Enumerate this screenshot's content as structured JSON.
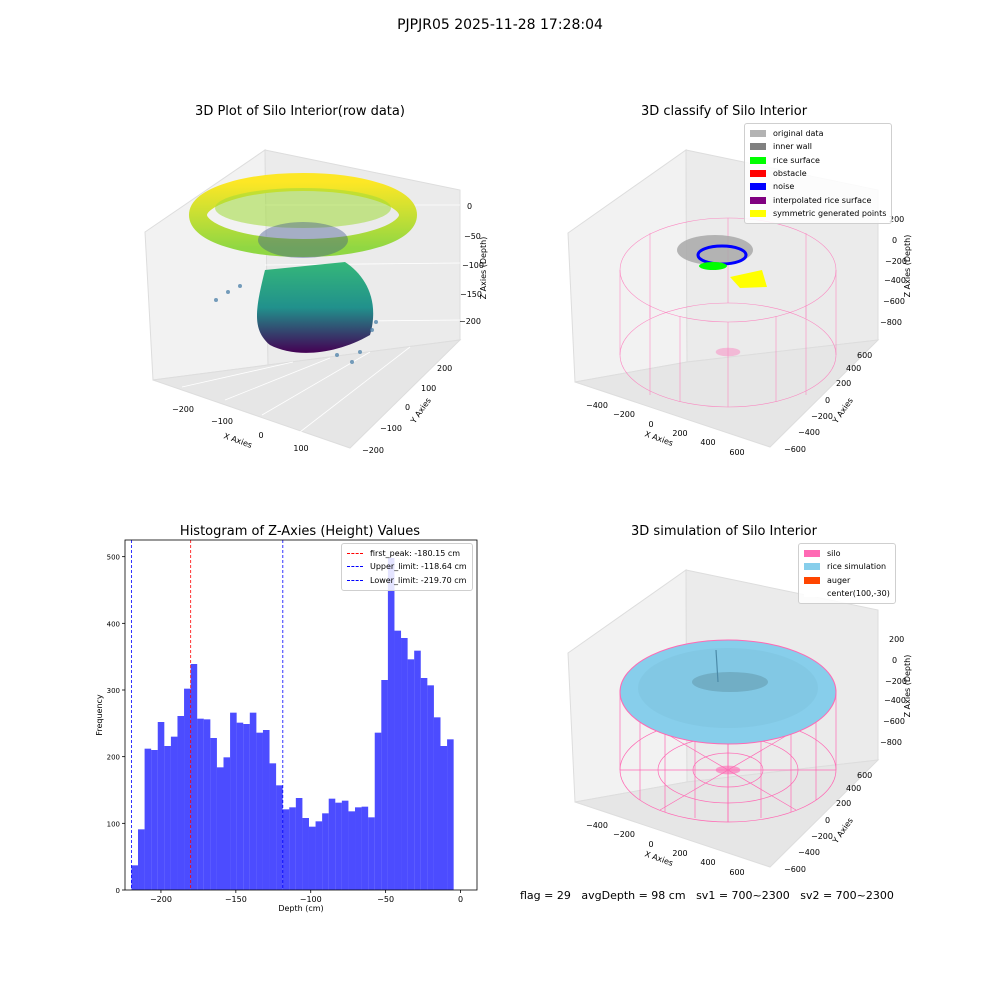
{
  "figure_title": "PJPJR05 2025-11-28 17:28:04",
  "footer": {
    "flag": "flag = 29",
    "avg": "avgDepth = 98 cm",
    "sv1": "sv1 = 700~2300",
    "sv2": "sv2 = 700~2300"
  },
  "panels": {
    "raw": {
      "title": "3D Plot of Silo Interior(row data)",
      "xlabel": "X Axies",
      "ylabel": "Y Axies",
      "zlabel": "Z Axies (Depth)",
      "xticks": [
        "−200",
        "−100",
        "0",
        "100"
      ],
      "yticks": [
        "200",
        "100",
        "0",
        "−100",
        "−200"
      ],
      "zticks": [
        "0",
        "−50",
        "−100",
        "−150",
        "−200"
      ]
    },
    "classify": {
      "title": "3D classify of Silo Interior",
      "xlabel": "X Axies",
      "ylabel": "Y Axies",
      "zlabel": "Z Axies (Depth)",
      "xticks": [
        "−400",
        "−200",
        "0",
        "200",
        "400",
        "600"
      ],
      "yticks": [
        "600",
        "400",
        "200",
        "0",
        "−200",
        "−400",
        "−600"
      ],
      "zticks": [
        "200",
        "0",
        "−200",
        "−400",
        "−600",
        "−800"
      ],
      "legend": [
        {
          "label": "original data",
          "color": "#b3b3b3"
        },
        {
          "label": "inner wall",
          "color": "#808080"
        },
        {
          "label": "rice surface",
          "color": "#00ff00"
        },
        {
          "label": "obstacle",
          "color": "#ff0000"
        },
        {
          "label": "noise",
          "color": "#0000ff"
        },
        {
          "label": "interpolated rice surface",
          "color": "#800080"
        },
        {
          "label": "symmetric generated points",
          "color": "#ffff00"
        }
      ]
    },
    "simulation": {
      "title": "3D simulation of Silo Interior",
      "xlabel": "X Axies",
      "ylabel": "Y Axies",
      "zlabel": "Z Axies (Depth)",
      "xticks": [
        "−400",
        "−200",
        "0",
        "200",
        "400",
        "600"
      ],
      "yticks": [
        "600",
        "400",
        "200",
        "0",
        "−200",
        "−400",
        "−600"
      ],
      "zticks": [
        "200",
        "0",
        "−200",
        "−400",
        "−600",
        "−800"
      ],
      "legend": [
        {
          "label": "silo",
          "color": "#ff69b4"
        },
        {
          "label": "rice simulation",
          "color": "#87ceeb"
        },
        {
          "label": "auger",
          "color": "#ff4500"
        },
        {
          "label": "center(100,-30)",
          "color": "#ffffff"
        }
      ]
    }
  },
  "chart_data": {
    "type": "bar",
    "title": "Histogram of Z-Axies (Height) Values",
    "xlabel": "Depth (cm)",
    "ylabel": "Frequency",
    "xlim": [
      -224,
      11
    ],
    "ylim": [
      0,
      525
    ],
    "xticks": [
      -200,
      -150,
      -100,
      -50,
      0
    ],
    "xtick_labels": [
      "−200",
      "−150",
      "−100",
      "−50",
      "0"
    ],
    "yticks": [
      0,
      100,
      200,
      300,
      400,
      500
    ],
    "bin_start": -219.7,
    "bin_width": 4.39,
    "values": [
      37,
      91,
      212,
      210,
      252,
      216,
      230,
      261,
      302,
      339,
      257,
      256,
      228,
      184,
      199,
      266,
      251,
      249,
      266,
      236,
      240,
      190,
      157,
      121,
      124,
      138,
      108,
      95,
      103,
      115,
      137,
      131,
      134,
      118,
      124,
      125,
      109,
      236,
      315,
      498,
      389,
      378,
      346,
      359,
      318,
      307,
      259,
      216,
      226
    ],
    "bar_color": "#0000ff",
    "vlines": [
      {
        "x": -180.15,
        "color": "#ff0000",
        "label": "first_peak: -180.15 cm"
      },
      {
        "x": -118.64,
        "color": "#0000ff",
        "label": "Upper_limit: -118.64 cm"
      },
      {
        "x": -219.7,
        "color": "#0000ff",
        "label": "Lower_limit: -219.70 cm"
      }
    ],
    "legend_position": "upper right",
    "grid": false
  }
}
